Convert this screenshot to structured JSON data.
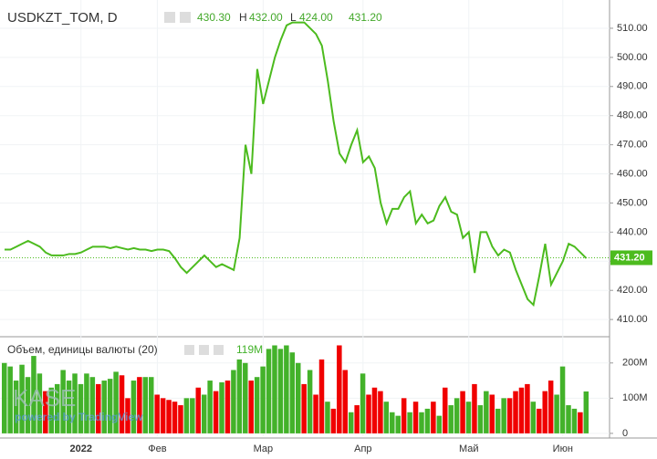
{
  "chart_data": [
    {
      "type": "line",
      "title": "USDKZT_TOM, D",
      "open": "430.30",
      "high_label": "H",
      "high": "432.00",
      "low_label": "L",
      "low": "424.00",
      "close": {
        "value": 431.2,
        "label": "431.20"
      },
      "watermark": "KASE",
      "watermark_sub": "powered by TradingView",
      "color": "#4cbb1e",
      "grid": true,
      "categories": [
        null,
        null,
        null,
        null,
        null,
        null,
        null,
        null,
        null,
        null,
        null,
        null,
        null,
        "2022",
        null,
        null,
        null,
        null,
        null,
        null,
        null,
        null,
        null,
        null,
        null,
        null,
        "Фев",
        null,
        null,
        null,
        null,
        null,
        null,
        null,
        null,
        null,
        null,
        null,
        null,
        null,
        null,
        null,
        null,
        null,
        "Мар",
        null,
        null,
        null,
        null,
        null,
        null,
        null,
        null,
        null,
        null,
        null,
        null,
        null,
        null,
        null,
        null,
        "Апр",
        null,
        null,
        null,
        null,
        null,
        null,
        null,
        null,
        null,
        null,
        null,
        null,
        null,
        null,
        null,
        null,
        null,
        "Май",
        null,
        null,
        null,
        null,
        null,
        null,
        null,
        null,
        null,
        null,
        null,
        null,
        null,
        null,
        null,
        "Июн",
        null,
        null,
        null,
        null
      ],
      "values": [
        434,
        434,
        435,
        436,
        437,
        436,
        435,
        433,
        432,
        432,
        432,
        432.5,
        432.5,
        433,
        434,
        435,
        435,
        435,
        434.5,
        435,
        434.5,
        434,
        434.5,
        434,
        434,
        433.5,
        434,
        434,
        433.5,
        431,
        428,
        426,
        428,
        430,
        432,
        430,
        428,
        429,
        428,
        427,
        438,
        470,
        460,
        496,
        484,
        492,
        500,
        506,
        511,
        512,
        512,
        512,
        510,
        508,
        504,
        492,
        478,
        467,
        464,
        470,
        475,
        464,
        466,
        462,
        450,
        443,
        448,
        448,
        452,
        454,
        443,
        446,
        443,
        444,
        449,
        452,
        447,
        446,
        438,
        440,
        426,
        440,
        440,
        435,
        432,
        434,
        433,
        427,
        422,
        417,
        415,
        425,
        436,
        422,
        426,
        430,
        436,
        435,
        433,
        431
      ],
      "ylim": [
        404.4,
        519.7
      ],
      "yticks": [
        {
          "value": 410,
          "label": "410.00"
        },
        {
          "value": 420,
          "label": "420.00"
        },
        {
          "value": 430,
          "label": "430.00"
        },
        {
          "value": 440,
          "label": "440.00"
        },
        {
          "value": 450,
          "label": "450.00"
        },
        {
          "value": 460,
          "label": "460.00"
        },
        {
          "value": 470,
          "label": "470.00"
        },
        {
          "value": 480,
          "label": "480.00"
        },
        {
          "value": 490,
          "label": "490.00"
        },
        {
          "value": 500,
          "label": "500.00"
        },
        {
          "value": 510,
          "label": "510.00"
        }
      ]
    },
    {
      "type": "bar",
      "title": "Объем, единицы валюты (20)",
      "values": [
        200,
        190,
        150,
        195,
        160,
        220,
        170,
        120,
        130,
        140,
        180,
        150,
        170,
        140,
        170,
        160,
        140,
        150,
        155,
        175,
        165,
        100,
        150,
        160,
        160,
        160,
        110,
        100,
        95,
        90,
        80,
        100,
        100,
        130,
        110,
        150,
        120,
        145,
        150,
        180,
        210,
        200,
        150,
        160,
        190,
        240,
        250,
        240,
        250,
        230,
        200,
        140,
        180,
        110,
        210,
        90,
        70,
        250,
        180,
        60,
        80,
        170,
        110,
        130,
        120,
        90,
        60,
        50,
        100,
        60,
        90,
        60,
        70,
        90,
        50,
        130,
        80,
        100,
        120,
        90,
        140,
        80,
        120,
        110,
        70,
        100,
        100,
        120,
        130,
        140,
        90,
        70,
        120,
        150,
        110,
        190,
        80,
        70,
        60,
        119
      ],
      "value_labels": [
        null,
        null,
        null,
        null,
        null,
        null,
        null,
        null,
        null,
        null,
        null,
        null,
        null,
        null,
        null,
        null,
        null,
        null,
        null,
        null,
        null,
        null,
        null,
        null,
        null,
        null,
        null,
        null,
        null,
        null,
        null,
        null,
        null,
        null,
        null,
        null,
        null,
        null,
        null,
        null,
        null,
        null,
        null,
        null,
        null,
        null,
        null,
        null,
        null,
        null,
        null,
        null,
        null,
        null,
        null,
        null,
        null,
        null,
        null,
        null,
        null,
        null,
        null,
        null,
        null,
        null,
        null,
        null,
        null,
        null,
        null,
        null,
        null,
        null,
        null,
        null,
        null,
        null,
        null,
        null,
        null,
        null,
        null,
        null,
        null,
        null,
        null,
        null,
        null,
        null,
        null,
        null,
        null,
        null,
        null,
        null,
        null,
        null,
        null,
        "119M"
      ],
      "colors": [
        "#43b22a",
        "#43b22a",
        "#43b22a",
        "#43b22a",
        "#43b22a",
        "#43b22a",
        "#43b22a",
        "#f00000",
        "#43b22a",
        "#43b22a",
        "#43b22a",
        "#43b22a",
        "#43b22a",
        "#43b22a",
        "#43b22a",
        "#43b22a",
        "#f00000",
        "#43b22a",
        "#43b22a",
        "#43b22a",
        "#f00000",
        "#f00000",
        "#43b22a",
        "#f00000",
        "#43b22a",
        "#43b22a",
        "#f00000",
        "#f00000",
        "#f00000",
        "#f00000",
        "#f00000",
        "#43b22a",
        "#43b22a",
        "#f00000",
        "#43b22a",
        "#43b22a",
        "#f00000",
        "#43b22a",
        "#f00000",
        "#43b22a",
        "#43b22a",
        "#43b22a",
        "#f00000",
        "#43b22a",
        "#43b22a",
        "#43b22a",
        "#43b22a",
        "#43b22a",
        "#43b22a",
        "#43b22a",
        "#43b22a",
        "#f00000",
        "#43b22a",
        "#f00000",
        "#f00000",
        "#43b22a",
        "#f00000",
        "#f00000",
        "#f00000",
        "#43b22a",
        "#f00000",
        "#43b22a",
        "#f00000",
        "#f00000",
        "#f00000",
        "#43b22a",
        "#43b22a",
        "#43b22a",
        "#f00000",
        "#43b22a",
        "#f00000",
        "#43b22a",
        "#43b22a",
        "#f00000",
        "#43b22a",
        "#f00000",
        "#43b22a",
        "#43b22a",
        "#f00000",
        "#43b22a",
        "#f00000",
        "#43b22a",
        "#43b22a",
        "#f00000",
        "#43b22a",
        "#43b22a",
        "#f00000",
        "#f00000",
        "#f00000",
        "#f00000",
        "#43b22a",
        "#f00000",
        "#f00000",
        "#f00000",
        "#43b22a",
        "#43b22a",
        "#43b22a",
        "#43b22a",
        "#f00000",
        "#43b22a"
      ],
      "ylim": [
        -8,
        272
      ],
      "yticks": [
        0,
        {
          "value": 100,
          "label": "100M"
        },
        {
          "value": 200,
          "label": "200M"
        }
      ]
    }
  ]
}
